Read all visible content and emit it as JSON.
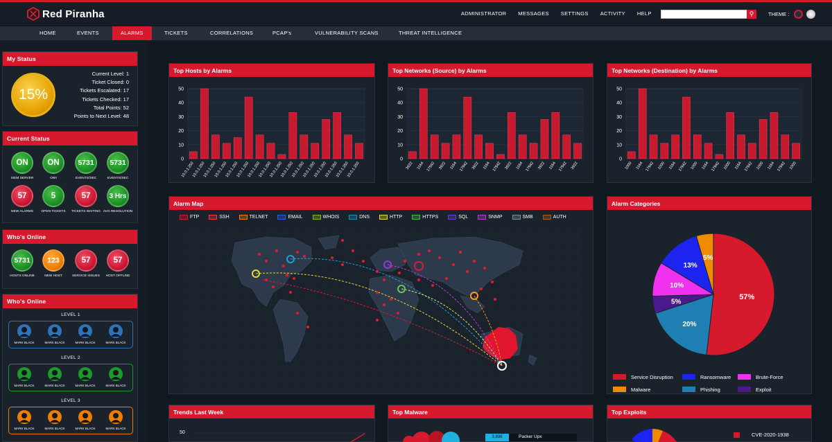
{
  "app": {
    "name": "Red Piranha"
  },
  "topnav": [
    "ADMINISTRATOR",
    "MESSAGES",
    "SETTINGS",
    "ACTIVITY",
    "HELP"
  ],
  "theme_label": "THEME :",
  "search": {
    "placeholder": "",
    "button_icon": "search-icon"
  },
  "tabs": [
    {
      "label": "HOME",
      "active": false
    },
    {
      "label": "EVENTS",
      "active": false
    },
    {
      "label": "ALARMS",
      "active": true
    },
    {
      "label": "TICKETS",
      "active": false
    },
    {
      "label": "CORRELATIONS",
      "active": false
    },
    {
      "label": "PCAP's",
      "active": false
    },
    {
      "label": "VULNERABILITY SCANS",
      "active": false
    },
    {
      "label": "THREAT INTELLIGENCE",
      "active": false
    }
  ],
  "my_status": {
    "title": "My Status",
    "percent": "15%",
    "lines": [
      "Current Level: 1",
      "Ticket Closed: 0",
      "Tickets Escalated: 17",
      "Tickets Checked: 17",
      "Total Points: 52",
      "Points to Next Level: 48"
    ]
  },
  "current_status": {
    "title": "Current Status",
    "items": [
      {
        "value": "ON",
        "label": "SIEM SERVER",
        "color": "green"
      },
      {
        "value": "ON",
        "label": "OWI",
        "color": "green"
      },
      {
        "value": "5731",
        "label": "EVENTS/SEC",
        "color": "green"
      },
      {
        "value": "5731",
        "label": "EVENTS/SEC",
        "color": "green"
      },
      {
        "value": "57",
        "label": "NEW ALARMS",
        "color": "red"
      },
      {
        "value": "5",
        "label": "OPEN TICKETS",
        "color": "green"
      },
      {
        "value": "57",
        "label": "TICKETS WAITING",
        "color": "red"
      },
      {
        "value": "3 Hrs",
        "label": "AVG RESOLUTION",
        "color": "green"
      }
    ]
  },
  "whos_online_1": {
    "title": "Who's Online",
    "items": [
      {
        "value": "5731",
        "label": "HOSTS ONLINE",
        "color": "green"
      },
      {
        "value": "123",
        "label": "NEW HOST",
        "color": "orange"
      },
      {
        "value": "57",
        "label": "SERVICE ISSUES",
        "color": "red"
      },
      {
        "value": "57",
        "label": "HOST OFFLINE",
        "color": "red"
      }
    ]
  },
  "whos_online_2": {
    "title": "Who's Online",
    "levels": [
      {
        "label": "LEVEL 1",
        "color": "#2e73b8",
        "users": [
          "MARK BLACK",
          "MARK BLACK",
          "MARK BLACK",
          "MARK BLACK"
        ]
      },
      {
        "label": "LEVEL 2",
        "color": "#1c9a2a",
        "users": [
          "MARK BLACK",
          "MARK BLACK",
          "MARK BLACK",
          "MARK BLACK"
        ]
      },
      {
        "label": "LEVEL 3",
        "color": "#ef7d00",
        "users": [
          "MARK BLACK",
          "MARK BLACK",
          "MARK BLACK",
          "MARK BLACK"
        ]
      }
    ]
  },
  "panels": {
    "top_hosts": "Top Hosts by Alarms",
    "top_src": "Top Networks (Source) by Alarms",
    "top_dst": "Top Networks (Destination) by Alarms",
    "alarm_map": "Alarm Map",
    "alarm_categories": "Alarm Categories",
    "trends": "Trends Last Week",
    "top_malware": "Top Malware",
    "top_exploits": "Top Exploits"
  },
  "map_legend": [
    {
      "label": "FTP",
      "color": "#d7192e"
    },
    {
      "label": "SSH",
      "color": "#f03c3c"
    },
    {
      "label": "TELNET",
      "color": "#ef7d00"
    },
    {
      "label": "EMAIL",
      "color": "#2a5fd6"
    },
    {
      "label": "WHOIS",
      "color": "#8bb820"
    },
    {
      "label": "DNS",
      "color": "#1f8fb8"
    },
    {
      "label": "HTTP",
      "color": "#e0e032"
    },
    {
      "label": "HTTPS",
      "color": "#4db34d"
    },
    {
      "label": "SQL",
      "color": "#6a3cc8"
    },
    {
      "label": "SNMP",
      "color": "#b43cd0"
    },
    {
      "label": "SMB",
      "color": "#7a8aa0"
    },
    {
      "label": "AUTH",
      "color": "#b05a1a"
    }
  ],
  "malware_partial": {
    "value": "3,898",
    "label": "Packer Upx"
  },
  "exploit_partial": {
    "label": "CVE-2020-1938"
  },
  "trends_partial": {
    "ytick": "50"
  },
  "chart_data": [
    {
      "type": "bar",
      "title": "Top Hosts by Alarms",
      "categories": [
        "10.0.1.250",
        "10.0.1.250",
        "10.0.1.250",
        "10.0.1.250",
        "10.0.1.250",
        "10.0.1.250",
        "10.0.1.250",
        "10.0.1.250",
        "10.0.1.250",
        "10.0.1.250",
        "10.0.1.250",
        "10.0.1.250",
        "10.0.1.250",
        "10.0.1.250",
        "10.0.1.250",
        "10.0.1.250"
      ],
      "values": [
        5,
        50,
        17,
        11,
        15,
        44,
        17,
        11,
        3,
        33,
        17,
        11,
        28,
        33,
        17,
        11
      ],
      "ylim": [
        0,
        50
      ],
      "yticks": [
        0,
        10,
        20,
        30,
        40,
        50
      ]
    },
    {
      "type": "bar",
      "title": "Top Networks (Source) by Alarms",
      "categories": [
        "3922",
        "1164",
        "17942",
        "3922",
        "1164",
        "17942",
        "3922",
        "1164",
        "17942",
        "3922",
        "1164",
        "17942",
        "3922",
        "1164",
        "17942",
        "3922"
      ],
      "values": [
        5,
        50,
        17,
        11,
        17,
        44,
        17,
        11,
        3,
        33,
        17,
        11,
        28,
        33,
        17,
        11
      ],
      "ylim": [
        0,
        50
      ],
      "yticks": [
        0,
        10,
        20,
        30,
        40,
        50
      ]
    },
    {
      "type": "bar",
      "title": "Top Networks (Destination) by Alarms",
      "categories": [
        "1000",
        "1164",
        "17942",
        "1000",
        "1164",
        "17942",
        "1000",
        "1164",
        "17942",
        "1000",
        "1164",
        "17942",
        "1000",
        "1164",
        "17942",
        "1000"
      ],
      "values": [
        5,
        50,
        17,
        11,
        17,
        44,
        17,
        11,
        3,
        33,
        17,
        11,
        28,
        33,
        17,
        11
      ],
      "ylim": [
        0,
        50
      ],
      "yticks": [
        0,
        10,
        20,
        30,
        40,
        50
      ]
    },
    {
      "type": "pie",
      "title": "Alarm Categories",
      "slices": [
        {
          "name": "Service Disruption",
          "value": 57,
          "label": "57%",
          "color": "#d7192e"
        },
        {
          "name": "Phishing",
          "value": 20,
          "label": "20%",
          "color": "#1f7fb3"
        },
        {
          "name": "Exploit",
          "value": 5,
          "label": "5%",
          "color": "#4a1a8c"
        },
        {
          "name": "Brute-Force",
          "value": 10,
          "label": "10%",
          "color": "#f031f0"
        },
        {
          "name": "Ransomware",
          "value": 13,
          "label": "13%",
          "color": "#1e24f0"
        },
        {
          "name": "Malware",
          "value": 5,
          "label": "5%",
          "color": "#f08a00"
        }
      ],
      "legend": [
        "Service Disruption",
        "Ransomware",
        "Brute-Force",
        "Malware",
        "Phishing",
        "Exploit"
      ]
    }
  ]
}
